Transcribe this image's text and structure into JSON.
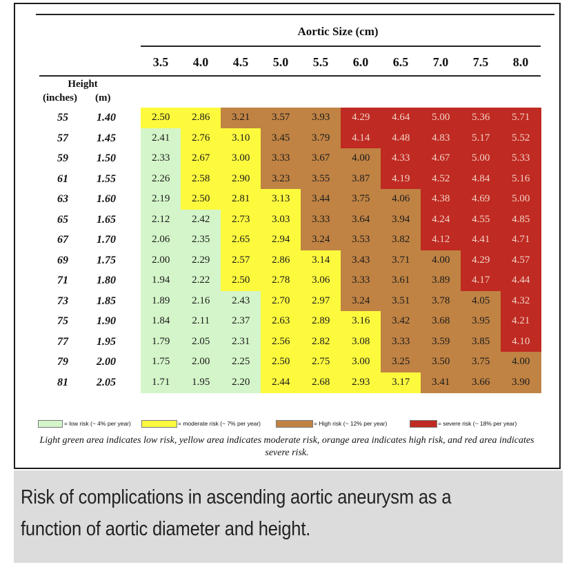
{
  "colors": {
    "low": "#d4f5c9",
    "moderate": "#fdfa3e",
    "high": "#c08344",
    "severe": "#bf2a22"
  },
  "chart_data": {
    "type": "table",
    "x_title": "Aortic Size (cm)",
    "row_title": "Height",
    "row_unit_1": "(inches)",
    "row_unit_2": "(m)",
    "aortic_sizes": [
      "3.5",
      "4.0",
      "4.5",
      "5.0",
      "5.5",
      "6.0",
      "6.5",
      "7.0",
      "7.5",
      "8.0"
    ],
    "rows": [
      {
        "inches": "55",
        "m": "1.40",
        "values": [
          "2.50",
          "2.86",
          "3.21",
          "3.57",
          "3.93",
          "4.29",
          "4.64",
          "5.00",
          "5.36",
          "5.71"
        ],
        "risk": [
          "moderate",
          "moderate",
          "high",
          "high",
          "high",
          "severe",
          "severe",
          "severe",
          "severe",
          "severe"
        ]
      },
      {
        "inches": "57",
        "m": "1.45",
        "values": [
          "2.41",
          "2.76",
          "3.10",
          "3.45",
          "3.79",
          "4.14",
          "4.48",
          "4.83",
          "5.17",
          "5.52"
        ],
        "risk": [
          "low",
          "moderate",
          "moderate",
          "high",
          "high",
          "severe",
          "severe",
          "severe",
          "severe",
          "severe"
        ]
      },
      {
        "inches": "59",
        "m": "1.50",
        "values": [
          "2.33",
          "2.67",
          "3.00",
          "3.33",
          "3.67",
          "4.00",
          "4.33",
          "4.67",
          "5.00",
          "5.33"
        ],
        "risk": [
          "low",
          "moderate",
          "moderate",
          "high",
          "high",
          "high",
          "severe",
          "severe",
          "severe",
          "severe"
        ]
      },
      {
        "inches": "61",
        "m": "1.55",
        "values": [
          "2.26",
          "2.58",
          "2.90",
          "3.23",
          "3.55",
          "3.87",
          "4.19",
          "4.52",
          "4.84",
          "5.16"
        ],
        "risk": [
          "low",
          "moderate",
          "moderate",
          "high",
          "high",
          "high",
          "severe",
          "severe",
          "severe",
          "severe"
        ]
      },
      {
        "inches": "63",
        "m": "1.60",
        "values": [
          "2.19",
          "2.50",
          "2.81",
          "3.13",
          "3.44",
          "3.75",
          "4.06",
          "4.38",
          "4.69",
          "5.00"
        ],
        "risk": [
          "low",
          "moderate",
          "moderate",
          "moderate",
          "high",
          "high",
          "high",
          "severe",
          "severe",
          "severe"
        ]
      },
      {
        "inches": "65",
        "m": "1.65",
        "values": [
          "2.12",
          "2.42",
          "2.73",
          "3.03",
          "3.33",
          "3.64",
          "3.94",
          "4.24",
          "4.55",
          "4.85"
        ],
        "risk": [
          "low",
          "low",
          "moderate",
          "moderate",
          "high",
          "high",
          "high",
          "severe",
          "severe",
          "severe"
        ]
      },
      {
        "inches": "67",
        "m": "1.70",
        "values": [
          "2.06",
          "2.35",
          "2.65",
          "2.94",
          "3.24",
          "3.53",
          "3.82",
          "4.12",
          "4.41",
          "4.71"
        ],
        "risk": [
          "low",
          "low",
          "moderate",
          "moderate",
          "high",
          "high",
          "high",
          "severe",
          "severe",
          "severe"
        ]
      },
      {
        "inches": "69",
        "m": "1.75",
        "values": [
          "2.00",
          "2.29",
          "2.57",
          "2.86",
          "3.14",
          "3.43",
          "3.71",
          "4.00",
          "4.29",
          "4.57"
        ],
        "risk": [
          "low",
          "low",
          "moderate",
          "moderate",
          "moderate",
          "high",
          "high",
          "high",
          "severe",
          "severe"
        ]
      },
      {
        "inches": "71",
        "m": "1.80",
        "values": [
          "1.94",
          "2.22",
          "2.50",
          "2.78",
          "3.06",
          "3.33",
          "3.61",
          "3.89",
          "4.17",
          "4.44"
        ],
        "risk": [
          "low",
          "low",
          "moderate",
          "moderate",
          "moderate",
          "high",
          "high",
          "high",
          "severe",
          "severe"
        ]
      },
      {
        "inches": "73",
        "m": "1.85",
        "values": [
          "1.89",
          "2.16",
          "2.43",
          "2.70",
          "2.97",
          "3.24",
          "3.51",
          "3.78",
          "4.05",
          "4.32"
        ],
        "risk": [
          "low",
          "low",
          "low",
          "moderate",
          "moderate",
          "high",
          "high",
          "high",
          "high",
          "severe"
        ]
      },
      {
        "inches": "75",
        "m": "1.90",
        "values": [
          "1.84",
          "2.11",
          "2.37",
          "2.63",
          "2.89",
          "3.16",
          "3.42",
          "3.68",
          "3.95",
          "4.21"
        ],
        "risk": [
          "low",
          "low",
          "low",
          "moderate",
          "moderate",
          "moderate",
          "high",
          "high",
          "high",
          "severe"
        ]
      },
      {
        "inches": "77",
        "m": "1.95",
        "values": [
          "1.79",
          "2.05",
          "2.31",
          "2.56",
          "2.82",
          "3.08",
          "3.33",
          "3.59",
          "3.85",
          "4.10"
        ],
        "risk": [
          "low",
          "low",
          "low",
          "moderate",
          "moderate",
          "moderate",
          "high",
          "high",
          "high",
          "severe"
        ]
      },
      {
        "inches": "79",
        "m": "2.00",
        "values": [
          "1.75",
          "2.00",
          "2.25",
          "2.50",
          "2.75",
          "3.00",
          "3.25",
          "3.50",
          "3.75",
          "4.00"
        ],
        "risk": [
          "low",
          "low",
          "low",
          "moderate",
          "moderate",
          "moderate",
          "high",
          "high",
          "high",
          "high"
        ]
      },
      {
        "inches": "81",
        "m": "2.05",
        "values": [
          "1.71",
          "1.95",
          "2.20",
          "2.44",
          "2.68",
          "2.93",
          "3.17",
          "3.41",
          "3.66",
          "3.90"
        ],
        "risk": [
          "low",
          "low",
          "low",
          "moderate",
          "moderate",
          "moderate",
          "moderate",
          "high",
          "high",
          "high"
        ]
      }
    ],
    "legend": [
      {
        "key": "low",
        "label": "= low risk (~ 4% per year)"
      },
      {
        "key": "moderate",
        "label": "= moderate risk (~ 7% per year)"
      },
      {
        "key": "high",
        "label": "= High risk (~ 12% per year)"
      },
      {
        "key": "severe",
        "label": "= severe risk (~ 18% per year)"
      }
    ]
  },
  "note": "Light green area indicates low risk, yellow area indicates moderate risk, orange area indicates high risk, and red area indicates severe risk.",
  "caption": "Risk of complications in ascending aortic aneurysm as a function of aortic diameter and height."
}
